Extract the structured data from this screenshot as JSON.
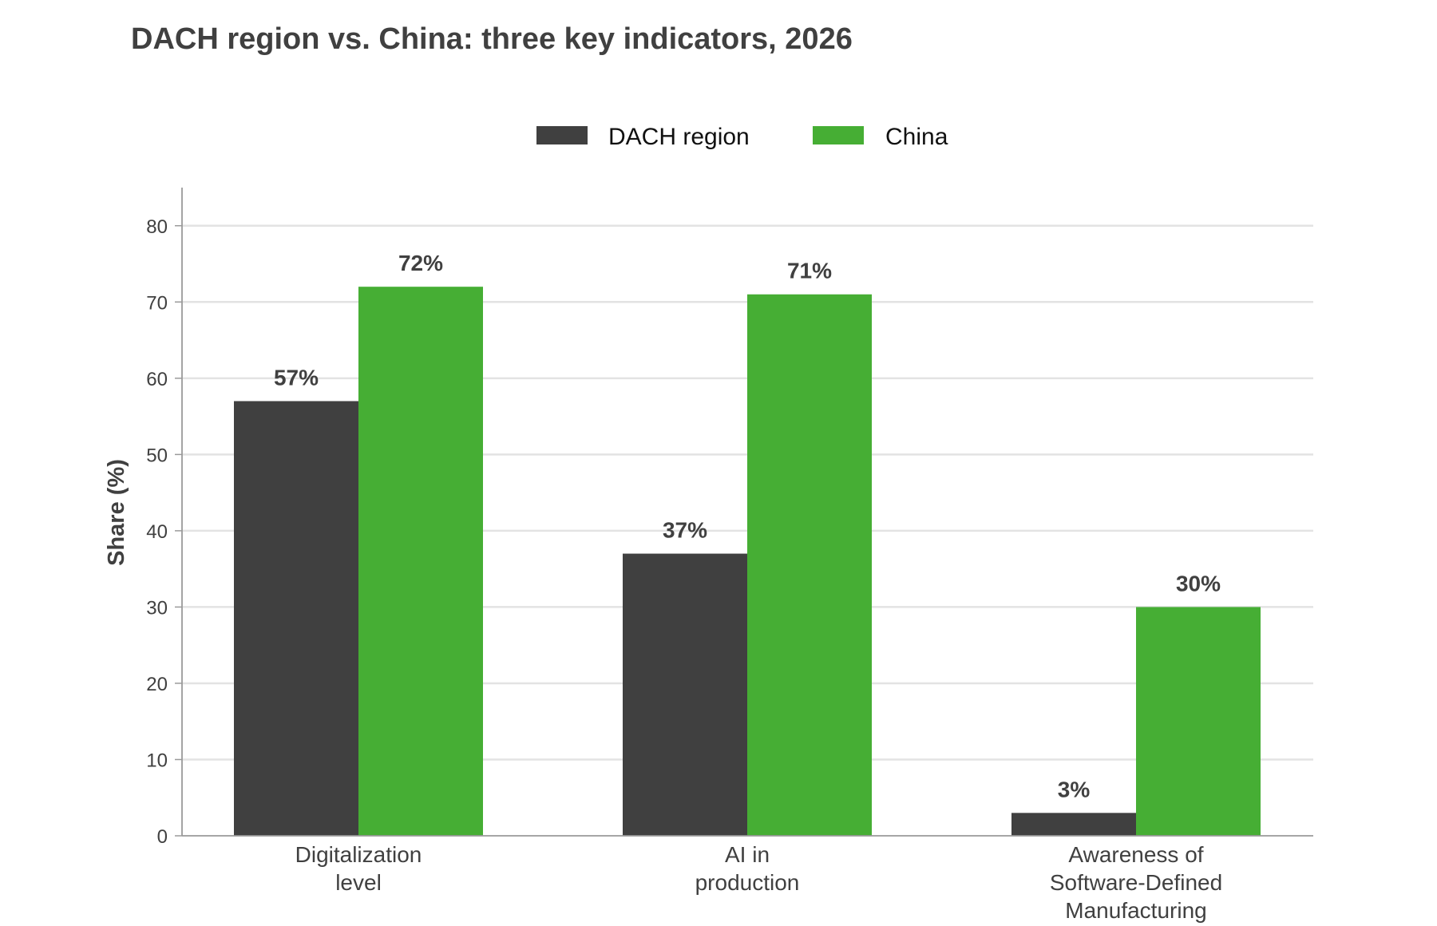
{
  "chart_data": {
    "type": "bar",
    "title": "DACH region vs. China: three key indicators, 2026",
    "xlabel": "",
    "ylabel": "Share (%)",
    "ylim": [
      0,
      85
    ],
    "yticks": [
      0,
      10,
      20,
      30,
      40,
      50,
      60,
      70,
      80
    ],
    "grid": true,
    "legend_position": "top-center",
    "categories": [
      [
        "Digitalization",
        "level"
      ],
      [
        "AI in",
        "production"
      ],
      [
        "Awareness of",
        "Software-Defined",
        "Manufacturing"
      ]
    ],
    "series": [
      {
        "name": "DACH region",
        "color": "#404040",
        "values": [
          57,
          37,
          3
        ],
        "labels": [
          "57%",
          "37%",
          "3%"
        ]
      },
      {
        "name": "China",
        "color": "#46ae34",
        "values": [
          72,
          71,
          30
        ],
        "labels": [
          "72%",
          "71%",
          "30%"
        ]
      }
    ]
  }
}
